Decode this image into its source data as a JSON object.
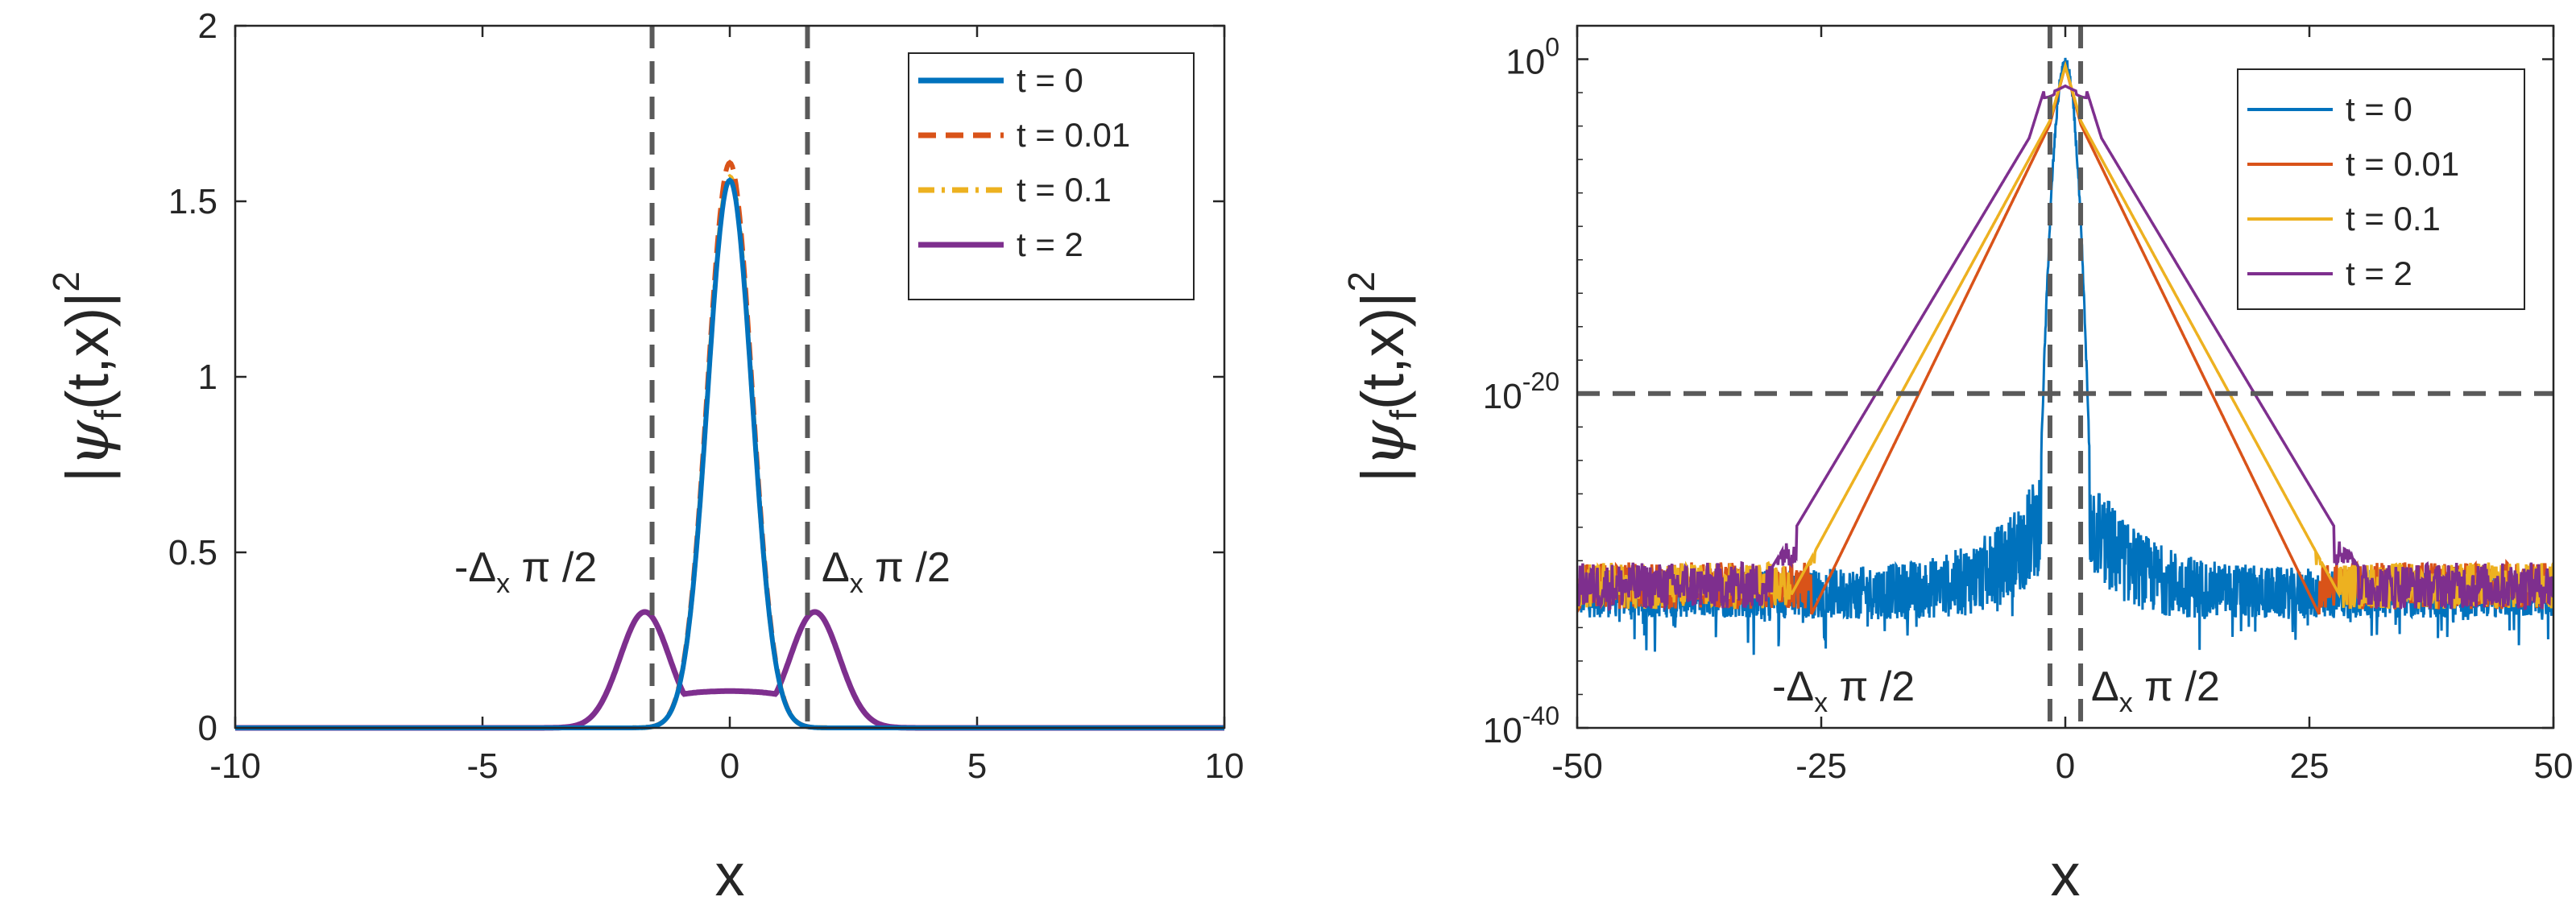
{
  "chart_data": [
    {
      "type": "line",
      "yscale": "linear",
      "xlabel": "x",
      "ylabel": "|ψf(t,x)|2",
      "xlim": [
        -10,
        10
      ],
      "ylim": [
        0,
        2
      ],
      "xticks": [
        "-10",
        "-5",
        "0",
        "5",
        "10"
      ],
      "yticks": [
        "0",
        "0.5",
        "1",
        "1.5",
        "2"
      ],
      "legend_position": "top-right",
      "series": [
        {
          "name": "t = 0",
          "color": "#0072BD",
          "style": "solid",
          "peak": 1.56,
          "sigma": 0.45
        },
        {
          "name": "t = 0.01",
          "color": "#D95319",
          "style": "dash",
          "peak": 1.61,
          "sigma": 0.45
        },
        {
          "name": "t = 0.1",
          "color": "#EDB120",
          "style": "dashdot",
          "peak": 1.57,
          "sigma": 0.45
        },
        {
          "name": "t = 2",
          "color": "#7E2F8E",
          "style": "solid",
          "side_peaks": [
            -1.72,
            1.72
          ],
          "side_peak_value": 0.35,
          "center_value": 0.11
        }
      ],
      "reference_lines": {
        "x": [
          -1.571,
          1.571
        ],
        "color": "#5a5a5a"
      },
      "annotations": [
        {
          "text": "-Δx π /2",
          "x": -4.7,
          "y": 0.47
        },
        {
          "text": "Δx π /2",
          "x": 1.8,
          "y": 0.47
        }
      ]
    },
    {
      "type": "line",
      "yscale": "log",
      "xlabel": "x",
      "ylabel": "|ψf(t,x)|2",
      "xlim": [
        -50,
        50
      ],
      "ylim_exp10": [
        -40,
        2
      ],
      "xticks": [
        "-50",
        "-25",
        "0",
        "25",
        "50"
      ],
      "yticks": [
        {
          "base": "10",
          "exp": "0",
          "value": 0
        },
        {
          "base": "10",
          "exp": "-20",
          "value": -20
        },
        {
          "base": "10",
          "exp": "-40",
          "value": -40
        }
      ],
      "legend_position": "top-right",
      "series": [
        {
          "name": "t = 0",
          "color": "#0072BD",
          "core_halfwidth": 2.5,
          "noise_floor_exp10": -32
        },
        {
          "name": "t = 0.01",
          "color": "#D95319",
          "edge_x": 26,
          "decay_per_unit_exp10": 1.2
        },
        {
          "name": "t = 0.1",
          "color": "#EDB120",
          "edge_x": 28,
          "decay_per_unit_exp10": 1.07
        },
        {
          "name": "t = 2",
          "color": "#7E2F8E",
          "edge_x": 30,
          "decay_per_unit_exp10": 0.975
        }
      ],
      "reference_lines": {
        "x": [
          -1.571,
          1.571
        ],
        "y_exp10": -20,
        "color": "#5a5a5a"
      },
      "annotations": [
        {
          "text": "-Δx π /2",
          "x": -15,
          "y_exp10": -37.5
        },
        {
          "text": "Δx π /2",
          "x": 1.8,
          "y_exp10": -37.5
        }
      ]
    }
  ]
}
